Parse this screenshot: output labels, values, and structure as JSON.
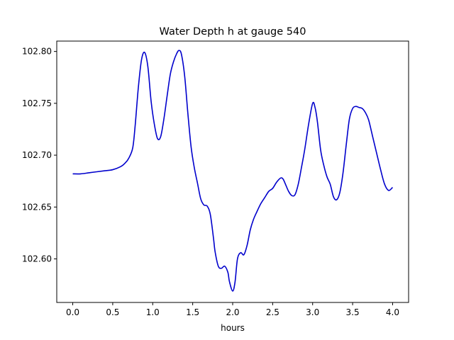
{
  "chart_data": {
    "type": "line",
    "title": "Water Depth h at gauge 540",
    "xlabel": "hours",
    "ylabel": "",
    "xlim": [
      -0.2,
      4.2
    ],
    "ylim": [
      102.558,
      102.81
    ],
    "xticks": [
      0.0,
      0.5,
      1.0,
      1.5,
      2.0,
      2.5,
      3.0,
      3.5,
      4.0
    ],
    "xtick_labels": [
      "0.0",
      "0.5",
      "1.0",
      "1.5",
      "2.0",
      "2.5",
      "3.0",
      "3.5",
      "4.0"
    ],
    "yticks": [
      102.6,
      102.65,
      102.7,
      102.75,
      102.8
    ],
    "ytick_labels": [
      "102.60",
      "102.65",
      "102.70",
      "102.75",
      "102.80"
    ],
    "grid": false,
    "series": [
      {
        "name": "",
        "color": "#0000cc",
        "x": [
          0.0,
          0.1,
          0.2,
          0.3,
          0.4,
          0.5,
          0.6,
          0.65,
          0.7,
          0.75,
          0.78,
          0.82,
          0.86,
          0.9,
          0.94,
          0.98,
          1.02,
          1.06,
          1.1,
          1.14,
          1.18,
          1.22,
          1.26,
          1.3,
          1.33,
          1.36,
          1.4,
          1.44,
          1.48,
          1.52,
          1.56,
          1.6,
          1.64,
          1.68,
          1.72,
          1.76,
          1.78,
          1.82,
          1.86,
          1.9,
          1.94,
          1.96,
          2.0,
          2.03,
          2.06,
          2.1,
          2.14,
          2.18,
          2.22,
          2.26,
          2.3,
          2.35,
          2.4,
          2.45,
          2.5,
          2.55,
          2.6,
          2.63,
          2.66,
          2.7,
          2.74,
          2.78,
          2.82,
          2.86,
          2.9,
          2.95,
          3.0,
          3.03,
          3.06,
          3.1,
          3.14,
          3.18,
          3.22,
          3.26,
          3.3,
          3.34,
          3.38,
          3.42,
          3.46,
          3.5,
          3.54,
          3.58,
          3.62,
          3.66,
          3.7,
          3.75,
          3.8,
          3.85,
          3.9,
          3.95,
          4.0
        ],
        "y": [
          102.682,
          102.682,
          102.683,
          102.684,
          102.685,
          102.686,
          102.689,
          102.692,
          102.697,
          102.707,
          102.728,
          102.765,
          102.792,
          102.799,
          102.785,
          102.752,
          102.73,
          102.716,
          102.718,
          102.735,
          102.757,
          102.778,
          102.79,
          102.798,
          102.801,
          102.797,
          102.776,
          102.74,
          102.708,
          102.688,
          102.673,
          102.658,
          102.652,
          102.651,
          102.643,
          102.62,
          102.607,
          102.593,
          102.591,
          102.593,
          102.587,
          102.578,
          102.569,
          102.578,
          102.6,
          102.606,
          102.604,
          102.613,
          102.628,
          102.638,
          102.645,
          102.653,
          102.659,
          102.665,
          102.668,
          102.674,
          102.678,
          102.677,
          102.672,
          102.665,
          102.661,
          102.662,
          102.672,
          102.688,
          102.705,
          102.73,
          102.75,
          102.746,
          102.732,
          102.705,
          102.69,
          102.679,
          102.672,
          102.66,
          102.657,
          102.664,
          102.683,
          102.71,
          102.735,
          102.745,
          102.747,
          102.746,
          102.745,
          102.741,
          102.734,
          102.718,
          102.702,
          102.686,
          102.672,
          102.666,
          102.669
        ]
      }
    ]
  }
}
